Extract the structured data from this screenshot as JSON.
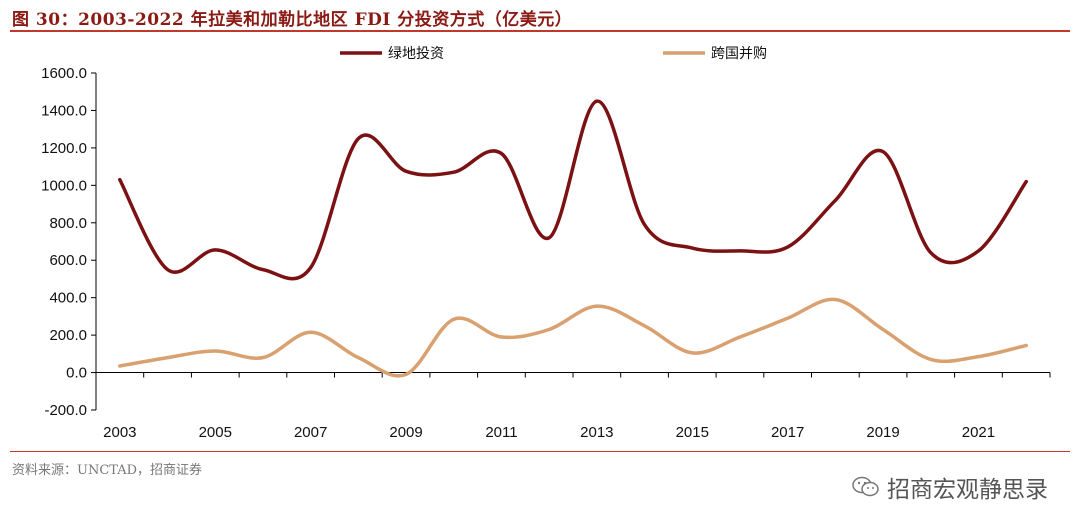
{
  "figure": {
    "title": "图 30：2003-2022 年拉美和加勒比地区 FDI 分投资方式（亿美元）",
    "source": "资料来源：UNCTAD，招商证券",
    "watermark": "招商宏观静思录",
    "watermark_icon": "wechat-icon"
  },
  "chart_data": {
    "type": "line",
    "title": "2003-2022 年拉美和加勒比地区 FDI 分投资方式（亿美元）",
    "xlabel": "",
    "ylabel": "",
    "x": [
      2003,
      2004,
      2005,
      2006,
      2007,
      2008,
      2009,
      2010,
      2011,
      2012,
      2013,
      2014,
      2015,
      2016,
      2017,
      2018,
      2019,
      2020,
      2021,
      2022
    ],
    "x_tick_labels": [
      "2003",
      "2005",
      "2007",
      "2009",
      "2011",
      "2013",
      "2015",
      "2017",
      "2019",
      "2021"
    ],
    "y_tick_labels": [
      "-200.0",
      "0.0",
      "200.0",
      "400.0",
      "600.0",
      "800.0",
      "1000.0",
      "1200.0",
      "1400.0",
      "1600.0"
    ],
    "ylim": [
      -200,
      1600
    ],
    "legend_position": "top-center",
    "grid": false,
    "series": [
      {
        "name": "绿地投资",
        "color": "#7b1113",
        "values": [
          1030,
          550,
          655,
          550,
          560,
          1250,
          1075,
          1070,
          1170,
          720,
          1450,
          790,
          665,
          650,
          670,
          920,
          1180,
          640,
          650,
          1020
        ]
      },
      {
        "name": "跨国并购",
        "color": "#d9a070",
        "values": [
          35,
          80,
          115,
          80,
          215,
          80,
          -10,
          285,
          190,
          230,
          355,
          250,
          105,
          190,
          290,
          390,
          230,
          70,
          85,
          145
        ]
      }
    ]
  }
}
